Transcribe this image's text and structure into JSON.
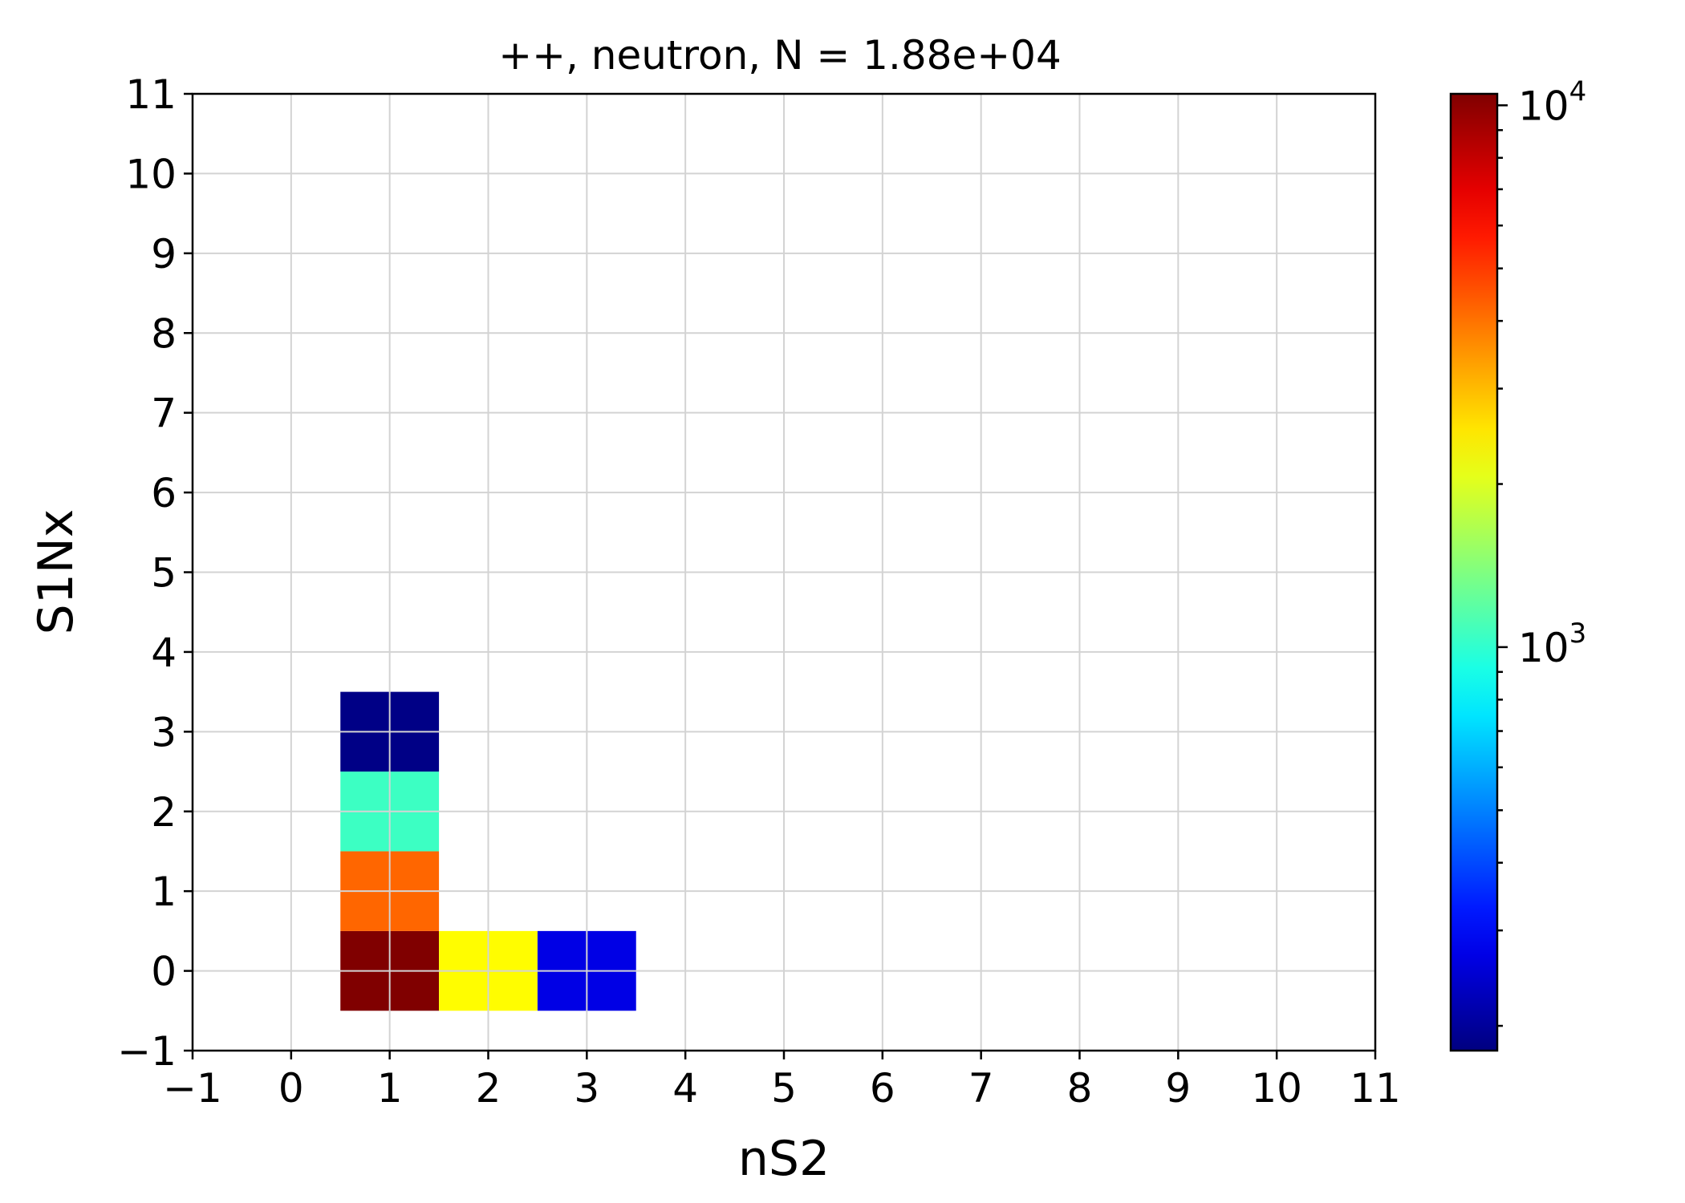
{
  "chart_data": {
    "type": "heatmap",
    "title": "++, neutron, N = 1.88e+04",
    "xlabel": "nS2",
    "ylabel": "S1Nx",
    "xlim": [
      -1,
      11
    ],
    "ylim": [
      -1,
      11
    ],
    "x_ticks": [
      "−1",
      "0",
      "1",
      "2",
      "3",
      "4",
      "5",
      "6",
      "7",
      "8",
      "9",
      "10",
      "11"
    ],
    "y_ticks": [
      "−1",
      "0",
      "1",
      "2",
      "3",
      "4",
      "5",
      "6",
      "7",
      "8",
      "9",
      "10",
      "11"
    ],
    "grid": true,
    "colormap": "jet",
    "color_scale": "log",
    "colorbar": {
      "vmin": 180,
      "vmax": 10500,
      "ticks": [
        {
          "value": 1000,
          "base": "10",
          "exp": "3"
        },
        {
          "value": 10000,
          "base": "10",
          "exp": "4"
        }
      ]
    },
    "cells": [
      {
        "x": 1,
        "y": 0,
        "value": 10500
      },
      {
        "x": 2,
        "y": 0,
        "value": 2300
      },
      {
        "x": 3,
        "y": 0,
        "value": 270
      },
      {
        "x": 1,
        "y": 1,
        "value": 4200
      },
      {
        "x": 1,
        "y": 2,
        "value": 1050
      },
      {
        "x": 1,
        "y": 3,
        "value": 185
      }
    ]
  }
}
